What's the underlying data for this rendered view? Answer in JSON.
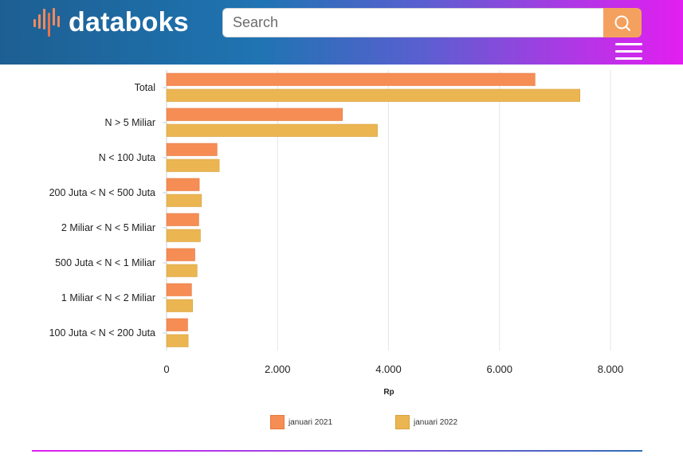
{
  "header": {
    "logo_text": "databoks",
    "search_placeholder": "Search"
  },
  "icons": {
    "logo": "databoks-logo-icon",
    "search": "search-icon",
    "menu": "hamburger-menu-icon"
  },
  "colors": {
    "series_2021": "#f68d55",
    "series_2022": "#ebb552",
    "search_button": "#f4a15f"
  },
  "chart_data": {
    "type": "bar",
    "orientation": "horizontal",
    "title": "",
    "xlabel": "Rp",
    "ylabel": "",
    "categories": [
      "Total",
      "N > 5 Miliar",
      "N < 100 Juta",
      "200 Juta < N < 500 Juta",
      "2 Miliar < N < 5 Miliar",
      "500 Juta < N < 1 Miliar",
      "1 Miliar < N < 2 Miliar",
      "100 Juta < N < 200 Juta"
    ],
    "series": [
      {
        "name": "januari 2021",
        "values": [
          6640,
          3170,
          910,
          590,
          580,
          510,
          450,
          380
        ]
      },
      {
        "name": "januari 2022",
        "values": [
          7450,
          3800,
          950,
          630,
          610,
          550,
          470,
          390
        ]
      }
    ],
    "xlim": [
      0,
      8000
    ],
    "xticks": [
      0,
      2000,
      4000,
      6000,
      8000
    ],
    "xtick_labels": [
      "0",
      "2.000",
      "4.000",
      "6.000",
      "8.000"
    ],
    "grid": true,
    "legend_position": "bottom"
  }
}
